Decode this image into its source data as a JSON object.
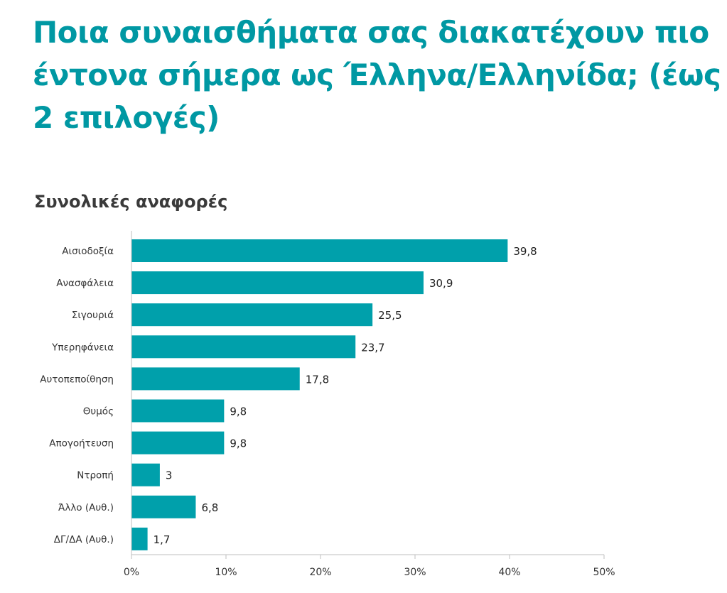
{
  "page": {
    "title": "Ποια συναισθήματα σας διακατέχουν πιο έντονα σήμερα ως Έλληνα/Ελληνίδα; (έως 2 επιλογές)",
    "subtitle": "Συνολικές αναφορές"
  },
  "chart_data": {
    "type": "bar",
    "orientation": "horizontal",
    "title": "Ποια συναισθήματα σας διακατέχουν πιο έντονα σήμερα ως Έλληνα/Ελληνίδα; (έως 2 επιλογές)",
    "subtitle": "Συνολικές αναφορές",
    "categories": [
      "Αισιοδοξία",
      "Ανασφάλεια",
      "Σιγουριά",
      "Υπερηφάνεια",
      "Αυτοπεποίθηση",
      "Θυμός",
      "Απογοήτευση",
      "Ντροπή",
      "Άλλο (Αυθ.)",
      "ΔΓ/ΔΑ (Αυθ.)"
    ],
    "values": [
      39.8,
      30.9,
      25.5,
      23.7,
      17.8,
      9.8,
      9.8,
      3,
      6.8,
      1.7
    ],
    "value_labels": [
      "39,8",
      "30,9",
      "25,5",
      "23,7",
      "17,8",
      "9,8",
      "9,8",
      "3",
      "6,8",
      "1,7"
    ],
    "xlim": [
      0,
      50
    ],
    "xticks": [
      0,
      10,
      20,
      30,
      40,
      50
    ],
    "xtick_labels": [
      "0%",
      "10%",
      "20%",
      "30%",
      "40%",
      "50%"
    ],
    "xlabel": "",
    "ylabel": "",
    "grid": false,
    "legend": "none",
    "bar_color": "#00A0AB",
    "axis_color": "#BFBFBF"
  }
}
